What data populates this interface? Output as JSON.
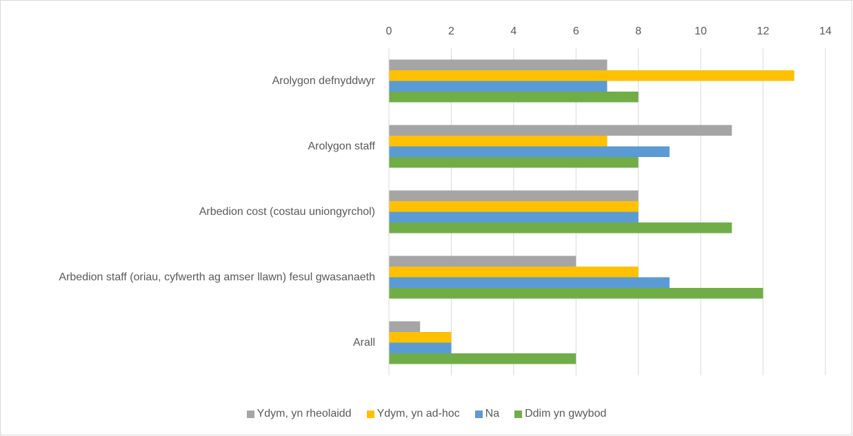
{
  "chart_data": {
    "type": "bar",
    "orientation": "horizontal",
    "categories": [
      "Arolygon defnyddwyr",
      "Arolygon staff",
      "Arbedion cost (costau uniongyrchol)",
      "Arbedion staff (oriau, cyfwerth ag amser llawn) fesul gwasanaeth",
      "Arall"
    ],
    "series": [
      {
        "name": "Ydym, yn rheolaidd",
        "color": "#a5a5a5",
        "values": [
          7,
          11,
          8,
          6,
          1
        ]
      },
      {
        "name": "Ydym, yn ad-hoc",
        "color": "#ffc000",
        "values": [
          13,
          7,
          8,
          8,
          2
        ]
      },
      {
        "name": "Na",
        "color": "#5b9bd5",
        "values": [
          7,
          9,
          8,
          9,
          2
        ]
      },
      {
        "name": "Ddim yn gwybod",
        "color": "#70ad47",
        "values": [
          8,
          8,
          11,
          12,
          6
        ]
      }
    ],
    "xlim": [
      0,
      14
    ],
    "xticks": [
      0,
      2,
      4,
      6,
      8,
      10,
      12,
      14
    ],
    "grid": true,
    "legend": "bottom"
  }
}
